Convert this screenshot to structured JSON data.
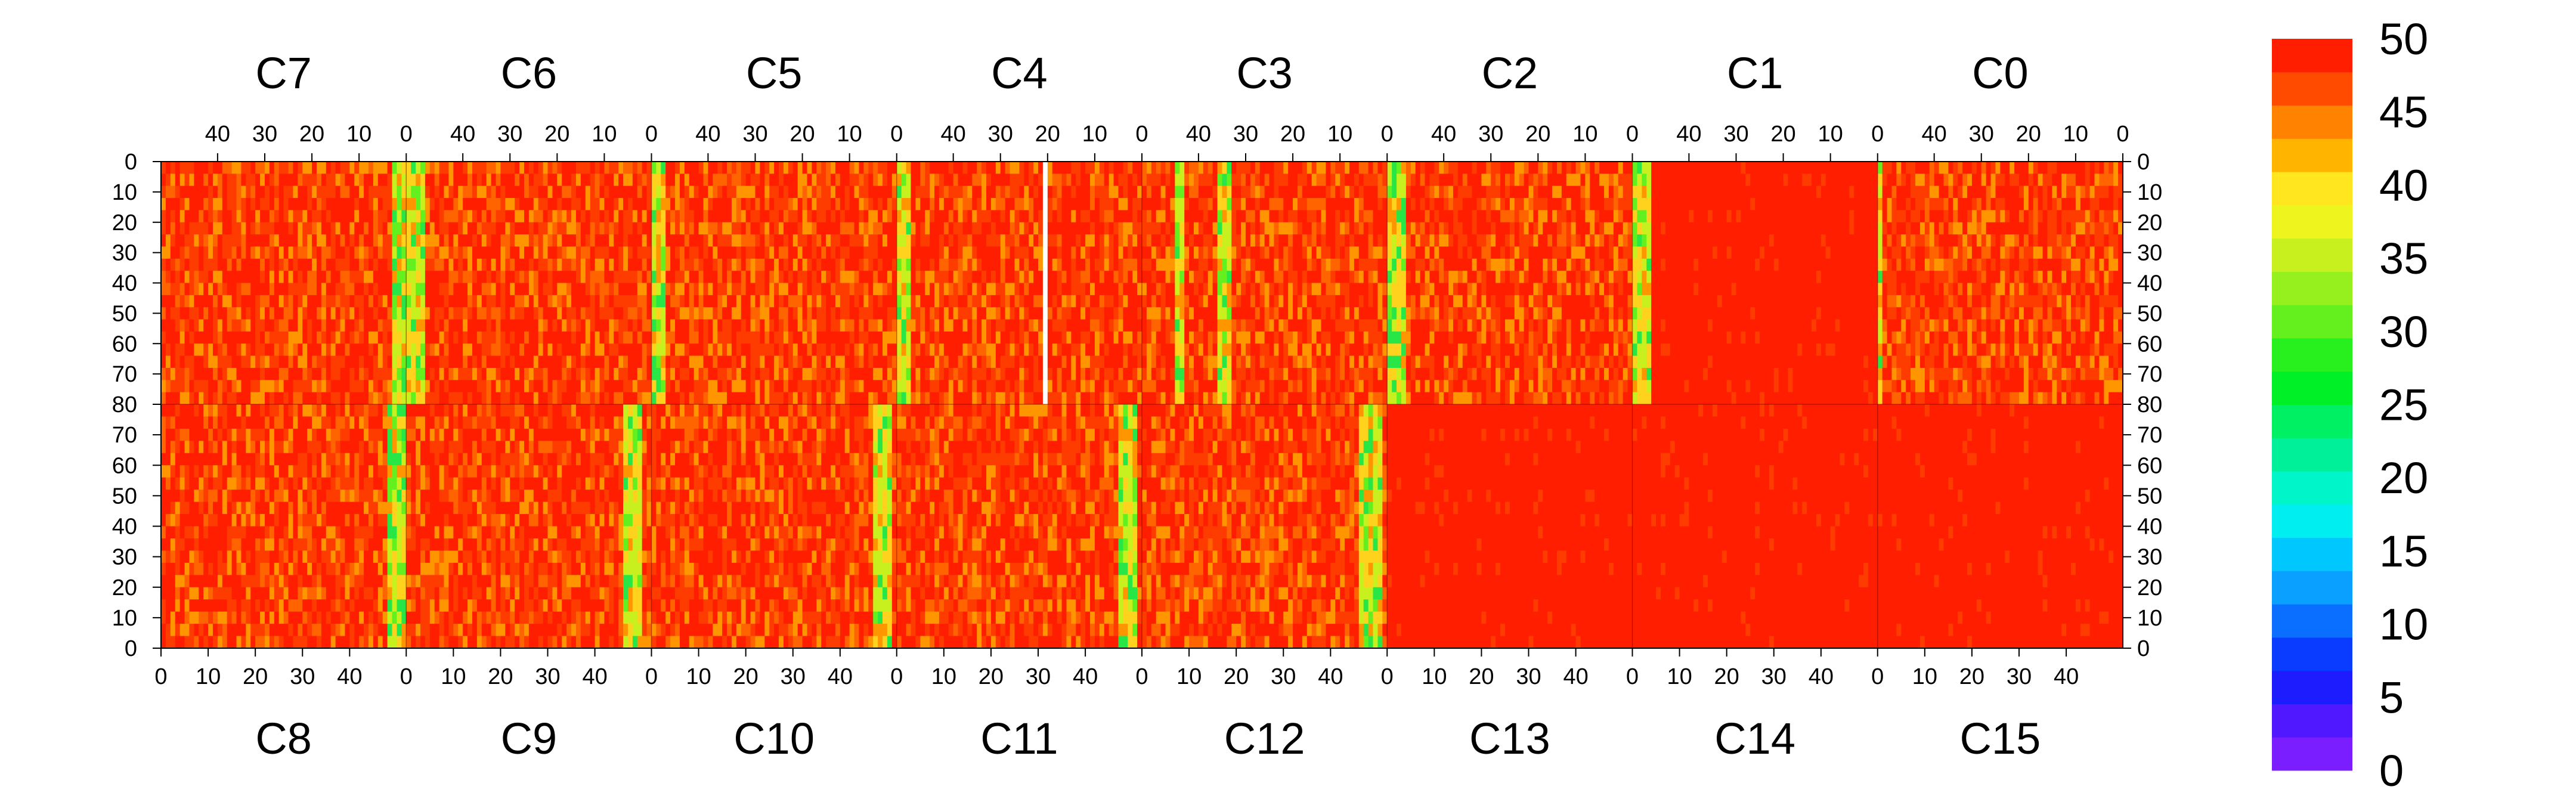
{
  "chart_data": {
    "type": "heatmap",
    "title": "",
    "xlabel": "",
    "ylabel": "",
    "zlim": [
      0,
      50
    ],
    "grid": false,
    "colorbar": {
      "placement": "right",
      "ticks": [
        "0",
        "5",
        "10",
        "15",
        "20",
        "25",
        "30",
        "35",
        "40",
        "45",
        "50"
      ],
      "bands": [
        "#7a1eff",
        "#5018ff",
        "#1c1cff",
        "#0a3cff",
        "#0a6eff",
        "#0aa0ff",
        "#00c8ff",
        "#00eef0",
        "#00f5c8",
        "#00f09a",
        "#00f064",
        "#00f028",
        "#28f01e",
        "#64f01e",
        "#96f01e",
        "#c8f01e",
        "#eef51e",
        "#ffe61e",
        "#ffb400",
        "#ff8200",
        "#ff4b00",
        "#ff1e00"
      ]
    },
    "palette": {
      "high": "#ff1e00",
      "warm1": "#ff3c00",
      "warm2": "#ff6400",
      "orange": "#ff9600",
      "yellow": "#ffd21e",
      "lime": "#c8f01e",
      "green": "#64f01e",
      "grass": "#28e646",
      "blank": "#ffffff"
    },
    "top_modules": [
      {
        "label": "C7",
        "bright_cols": [
          49,
          50,
          51
        ],
        "uniform": false
      },
      {
        "label": "C6",
        "bright_cols": [
          0,
          1,
          2,
          3
        ],
        "uniform": false
      },
      {
        "label": "C5",
        "bright_cols": [
          0,
          1,
          2
        ],
        "uniform": false
      },
      {
        "label": "C4",
        "bright_cols": [
          0,
          1,
          2
        ],
        "dead_cols": [
          31
        ],
        "uniform": false
      },
      {
        "label": "C3",
        "bright_cols": [
          7,
          8,
          16,
          17,
          18
        ],
        "uniform": false
      },
      {
        "label": "C2",
        "bright_cols": [
          0,
          1,
          2,
          3
        ],
        "uniform": false
      },
      {
        "label": "C1",
        "bright_cols": [
          0,
          1,
          2,
          3
        ],
        "uniform": true
      },
      {
        "label": "C0",
        "bright_cols": [
          0
        ],
        "uniform": false
      }
    ],
    "bottom_modules": [
      {
        "label": "C8",
        "bright_cols": [
          48,
          49,
          50,
          51
        ],
        "uniform": false
      },
      {
        "label": "C9",
        "bright_cols": [
          46,
          47,
          48,
          49
        ],
        "uniform": false
      },
      {
        "label": "C10",
        "bright_cols": [
          47,
          48,
          49,
          50
        ],
        "uniform": false
      },
      {
        "label": "C11",
        "bright_cols": [
          47,
          48,
          49,
          50
        ],
        "uniform": false
      },
      {
        "label": "C12",
        "bright_cols": [
          46,
          47,
          48,
          49,
          50
        ],
        "uniform": false
      },
      {
        "label": "C13",
        "bright_cols": [],
        "uniform": true
      },
      {
        "label": "C14",
        "bright_cols": [],
        "uniform": true
      },
      {
        "label": "C15",
        "bright_cols": [],
        "uniform": true
      }
    ],
    "x_ticks_top": [
      "40",
      "30",
      "20",
      "10",
      "0"
    ],
    "x_tick_values_top": [
      40,
      30,
      20,
      10,
      0
    ],
    "x_ticks_bottom": [
      "0",
      "10",
      "20",
      "30",
      "40"
    ],
    "x_tick_values_bottom": [
      0,
      10,
      20,
      30,
      40
    ],
    "y_ticks_top": [
      "0",
      "10",
      "20",
      "30",
      "40",
      "50",
      "60",
      "70",
      "80"
    ],
    "y_tick_values_top": [
      0,
      10,
      20,
      30,
      40,
      50,
      60,
      70,
      80
    ],
    "y_ticks_bottom": [
      "70",
      "60",
      "50",
      "40",
      "30",
      "20",
      "10",
      "0"
    ],
    "y_tick_values_bottom": [
      70,
      60,
      50,
      40,
      30,
      20,
      10,
      0
    ],
    "x_range": [
      0,
      52
    ],
    "y_range_top": [
      0,
      80
    ],
    "y_range_bottom": [
      0,
      80
    ]
  }
}
